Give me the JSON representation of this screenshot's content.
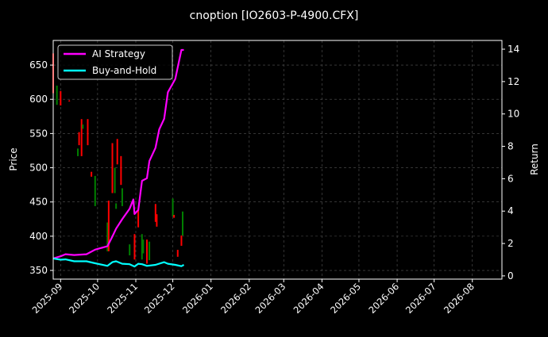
{
  "chart_data": {
    "type": "line",
    "title": "cnoption [IO2603-P-4900.CFX]",
    "ylabel": "Price",
    "ylabel_right": "Return",
    "xlabel": "",
    "xlim": [
      "2025-08-26",
      "2026-08-25"
    ],
    "ylim": [
      337.3,
      686
    ],
    "ylim_right": [
      -0.2,
      14.54
    ],
    "grid": true,
    "legend_position": "top-left",
    "xticks": [
      "2025-09",
      "2025-10",
      "2025-11",
      "2025-12",
      "2026-01",
      "2026-02",
      "2026-03",
      "2026-04",
      "2026-05",
      "2026-06",
      "2026-07",
      "2026-08"
    ],
    "yticks_left": [
      350,
      400,
      450,
      500,
      550,
      600,
      650
    ],
    "yticks_right": [
      0,
      2,
      4,
      6,
      8,
      10,
      12,
      14
    ],
    "colors": {
      "up": "#008000",
      "down": "#ff0000",
      "strategy": "#ff00ff",
      "buy_hold": "#00ffff",
      "background": "#000000",
      "grid": "#555555"
    },
    "candles": [
      {
        "date": "2025-08-26",
        "open": 667,
        "high": 667,
        "low": 609,
        "close": 609
      },
      {
        "date": "2025-08-29",
        "open": 592,
        "high": 620,
        "low": 592,
        "close": 620
      },
      {
        "date": "2025-09-01",
        "open": 612,
        "high": 612,
        "low": 591,
        "close": 591
      },
      {
        "date": "2025-09-08",
        "open": 598,
        "high": 599,
        "low": 597,
        "close": 597
      },
      {
        "date": "2025-09-15",
        "open": 517,
        "high": 528,
        "low": 517,
        "close": 528
      },
      {
        "date": "2025-09-16",
        "open": 552,
        "high": 552,
        "low": 533,
        "close": 533
      },
      {
        "date": "2025-09-18",
        "open": 571,
        "high": 571,
        "low": 517,
        "close": 517
      },
      {
        "date": "2025-09-19",
        "open": 557,
        "high": 563,
        "low": 557,
        "close": 563
      },
      {
        "date": "2025-09-23",
        "open": 571,
        "high": 571,
        "low": 533,
        "close": 533
      },
      {
        "date": "2025-09-26",
        "open": 494,
        "high": 494,
        "low": 487,
        "close": 487
      },
      {
        "date": "2025-09-29",
        "open": 444,
        "high": 488,
        "low": 444,
        "close": 488
      },
      {
        "date": "2025-10-09",
        "open": 378,
        "high": 420,
        "low": 378,
        "close": 420
      },
      {
        "date": "2025-10-10",
        "open": 452,
        "high": 452,
        "low": 378,
        "close": 378
      },
      {
        "date": "2025-10-13",
        "open": 536,
        "high": 536,
        "low": 463,
        "close": 463
      },
      {
        "date": "2025-10-15",
        "open": 463,
        "high": 500,
        "low": 463,
        "close": 500
      },
      {
        "date": "2025-10-16",
        "open": 440,
        "high": 448,
        "low": 440,
        "close": 448
      },
      {
        "date": "2025-10-17",
        "open": 542,
        "high": 542,
        "low": 505,
        "close": 505
      },
      {
        "date": "2025-10-20",
        "open": 517,
        "high": 517,
        "low": 475,
        "close": 475
      },
      {
        "date": "2025-10-21",
        "open": 444,
        "high": 470,
        "low": 444,
        "close": 470
      },
      {
        "date": "2025-10-27",
        "open": 372,
        "high": 388,
        "low": 372,
        "close": 388
      },
      {
        "date": "2025-10-31",
        "open": 403,
        "high": 403,
        "low": 366,
        "close": 366
      },
      {
        "date": "2025-11-03",
        "open": 440,
        "high": 440,
        "low": 413,
        "close": 413
      },
      {
        "date": "2025-11-06",
        "open": 366,
        "high": 403,
        "low": 366,
        "close": 403
      },
      {
        "date": "2025-11-07",
        "open": 375,
        "high": 395,
        "low": 375,
        "close": 395
      },
      {
        "date": "2025-11-10",
        "open": 395,
        "high": 395,
        "low": 360,
        "close": 360
      },
      {
        "date": "2025-11-12",
        "open": 365,
        "high": 392,
        "low": 365,
        "close": 392
      },
      {
        "date": "2025-11-17",
        "open": 447,
        "high": 447,
        "low": 421,
        "close": 421
      },
      {
        "date": "2025-11-18",
        "open": 432,
        "high": 432,
        "low": 414,
        "close": 414
      },
      {
        "date": "2025-12-01",
        "open": 429,
        "high": 455,
        "low": 429,
        "close": 455
      },
      {
        "date": "2025-12-02",
        "open": 431,
        "high": 431,
        "low": 427,
        "close": 427
      },
      {
        "date": "2025-12-05",
        "open": 380,
        "high": 380,
        "low": 370,
        "close": 370
      },
      {
        "date": "2025-12-08",
        "open": 401,
        "high": 401,
        "low": 386,
        "close": 386
      },
      {
        "date": "2025-12-09",
        "open": 401,
        "high": 436,
        "low": 401,
        "close": 436
      }
    ],
    "series": [
      {
        "name": "AI Strategy",
        "axis": "right",
        "x": [
          "2025-08-26",
          "2025-09-01",
          "2025-09-05",
          "2025-09-12",
          "2025-09-22",
          "2025-09-29",
          "2025-10-09",
          "2025-10-13",
          "2025-10-16",
          "2025-10-21",
          "2025-10-27",
          "2025-10-30",
          "2025-10-31",
          "2025-11-03",
          "2025-11-06",
          "2025-11-10",
          "2025-11-12",
          "2025-11-17",
          "2025-11-20",
          "2025-11-24",
          "2025-11-27",
          "2025-12-03",
          "2025-12-08",
          "2025-12-10"
        ],
        "y": [
          1.08,
          1.21,
          1.34,
          1.29,
          1.34,
          1.62,
          1.83,
          2.43,
          2.92,
          3.5,
          4.15,
          4.72,
          3.82,
          4.07,
          5.87,
          6.03,
          7.09,
          7.91,
          9.05,
          9.7,
          11.34,
          12.16,
          13.95,
          13.95
        ]
      },
      {
        "name": "Buy-and-Hold",
        "axis": "right",
        "x": [
          "2025-08-26",
          "2025-09-01",
          "2025-09-05",
          "2025-09-12",
          "2025-09-22",
          "2025-09-29",
          "2025-10-09",
          "2025-10-13",
          "2025-10-16",
          "2025-10-21",
          "2025-10-27",
          "2025-10-31",
          "2025-11-03",
          "2025-11-06",
          "2025-11-10",
          "2025-11-17",
          "2025-11-24",
          "2025-11-27",
          "2025-12-03",
          "2025-12-08",
          "2025-12-10"
        ],
        "y": [
          1.08,
          1.0,
          1.02,
          0.9,
          0.9,
          0.78,
          0.62,
          0.85,
          0.9,
          0.75,
          0.72,
          0.58,
          0.75,
          0.72,
          0.62,
          0.68,
          0.85,
          0.75,
          0.68,
          0.6,
          0.68
        ]
      }
    ]
  }
}
